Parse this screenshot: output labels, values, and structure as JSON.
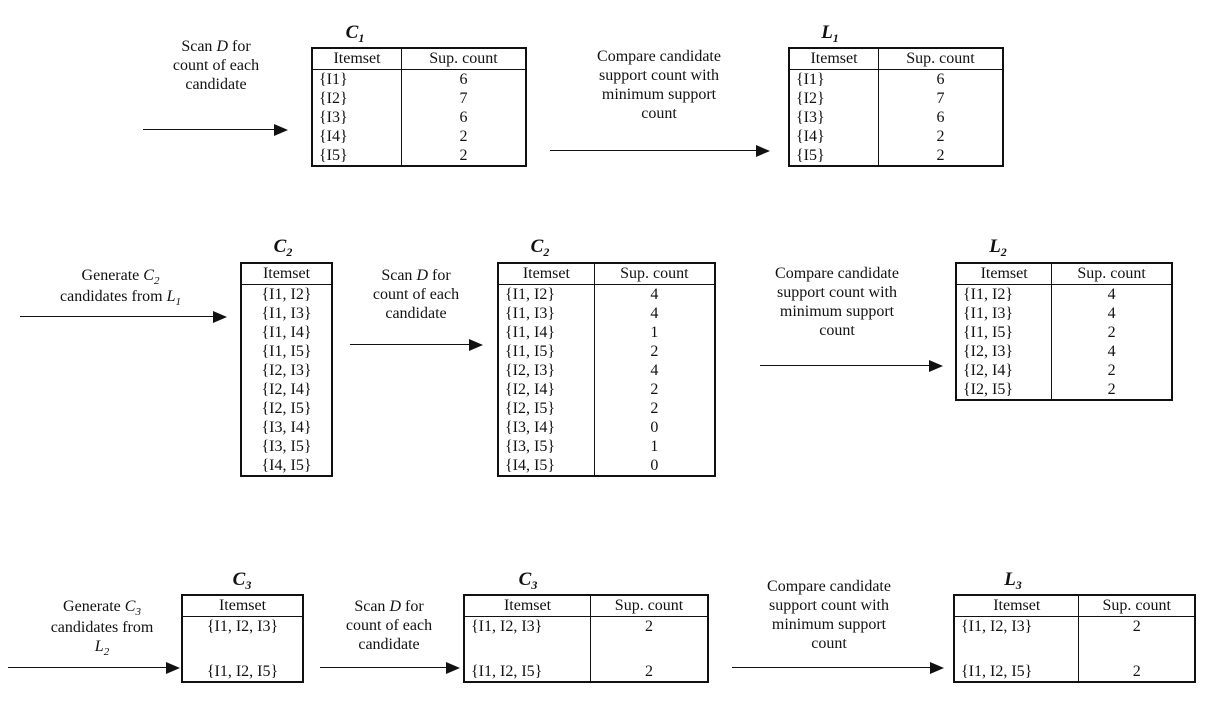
{
  "row1": {
    "scan_desc": {
      "l1a": "Scan ",
      "l1b": "D",
      "l1c": " for",
      "l2": "count of each",
      "l3": "candidate"
    },
    "c1": {
      "label": "C",
      "label_sub": "1",
      "headers": [
        "Itemset",
        "Sup. count"
      ],
      "rows": [
        {
          "itemset": "{I1}",
          "count": "6"
        },
        {
          "itemset": "{I2}",
          "count": "7"
        },
        {
          "itemset": "{I3}",
          "count": "6"
        },
        {
          "itemset": "{I4}",
          "count": "2"
        },
        {
          "itemset": "{I5}",
          "count": "2"
        }
      ]
    },
    "compare_desc": {
      "l1": "Compare candidate",
      "l2": "support count with",
      "l3": "minimum support",
      "l4": "count"
    },
    "l1": {
      "label": "L",
      "label_sub": "1",
      "headers": [
        "Itemset",
        "Sup. count"
      ],
      "rows": [
        {
          "itemset": "{I1}",
          "count": "6"
        },
        {
          "itemset": "{I2}",
          "count": "7"
        },
        {
          "itemset": "{I3}",
          "count": "6"
        },
        {
          "itemset": "{I4}",
          "count": "2"
        },
        {
          "itemset": "{I5}",
          "count": "2"
        }
      ]
    }
  },
  "row2": {
    "gen_desc": {
      "l1a": "Generate ",
      "l1b": "C",
      "l1sub": "2",
      "l2a": "candidates from ",
      "l2b": "L",
      "l2sub": "1"
    },
    "c2_gen": {
      "label": "C",
      "label_sub": "2",
      "headers": [
        "Itemset"
      ],
      "rows": [
        "{I1, I2}",
        "{I1, I3}",
        "{I1, I4}",
        "{I1, I5}",
        "{I2, I3}",
        "{I2, I4}",
        "{I2, I5}",
        "{I3, I4}",
        "{I3, I5}",
        "{I4, I5}"
      ]
    },
    "scan_desc": {
      "l1a": "Scan ",
      "l1b": "D",
      "l1c": " for",
      "l2": "count of each",
      "l3": "candidate"
    },
    "c2": {
      "label": "C",
      "label_sub": "2",
      "headers": [
        "Itemset",
        "Sup. count"
      ],
      "rows": [
        {
          "itemset": "{I1, I2}",
          "count": "4"
        },
        {
          "itemset": "{I1, I3}",
          "count": "4"
        },
        {
          "itemset": "{I1, I4}",
          "count": "1"
        },
        {
          "itemset": "{I1, I5}",
          "count": "2"
        },
        {
          "itemset": "{I2, I3}",
          "count": "4"
        },
        {
          "itemset": "{I2, I4}",
          "count": "2"
        },
        {
          "itemset": "{I2, I5}",
          "count": "2"
        },
        {
          "itemset": "{I3, I4}",
          "count": "0"
        },
        {
          "itemset": "{I3, I5}",
          "count": "1"
        },
        {
          "itemset": "{I4, I5}",
          "count": "0"
        }
      ]
    },
    "compare_desc": {
      "l1": "Compare candidate",
      "l2": "support count with",
      "l3": "minimum support",
      "l4": "count"
    },
    "l2": {
      "label": "L",
      "label_sub": "2",
      "headers": [
        "Itemset",
        "Sup. count"
      ],
      "rows": [
        {
          "itemset": "{I1, I2}",
          "count": "4"
        },
        {
          "itemset": "{I1, I3}",
          "count": "4"
        },
        {
          "itemset": "{I1, I5}",
          "count": "2"
        },
        {
          "itemset": "{I2, I3}",
          "count": "4"
        },
        {
          "itemset": "{I2, I4}",
          "count": "2"
        },
        {
          "itemset": "{I2, I5}",
          "count": "2"
        }
      ]
    }
  },
  "row3": {
    "gen_desc": {
      "l1a": "Generate ",
      "l1b": "C",
      "l1sub": "3",
      "l2": "candidates from",
      "l3": "L",
      "l3sub": "2"
    },
    "c3_gen": {
      "label": "C",
      "label_sub": "3",
      "headers": [
        "Itemset"
      ],
      "rows": [
        "{I1, I2, I3}",
        "{I1, I2, I5}"
      ]
    },
    "scan_desc": {
      "l1a": "Scan ",
      "l1b": "D",
      "l1c": " for",
      "l2": "count of each",
      "l3": "candidate"
    },
    "c3": {
      "label": "C",
      "label_sub": "3",
      "headers": [
        "Itemset",
        "Sup. count"
      ],
      "rows": [
        {
          "itemset": "{I1, I2, I3}",
          "count": "2"
        },
        {
          "itemset": "{I1, I2, I5}",
          "count": "2"
        }
      ]
    },
    "compare_desc": {
      "l1": "Compare candidate",
      "l2": "support count with",
      "l3": "minimum support",
      "l4": "count"
    },
    "l3": {
      "label": "L",
      "label_sub": "3",
      "headers": [
        "Itemset",
        "Sup. count"
      ],
      "rows": [
        {
          "itemset": "{I1, I2, I3}",
          "count": "2"
        },
        {
          "itemset": "{I1, I2, I5}",
          "count": "2"
        }
      ]
    }
  }
}
